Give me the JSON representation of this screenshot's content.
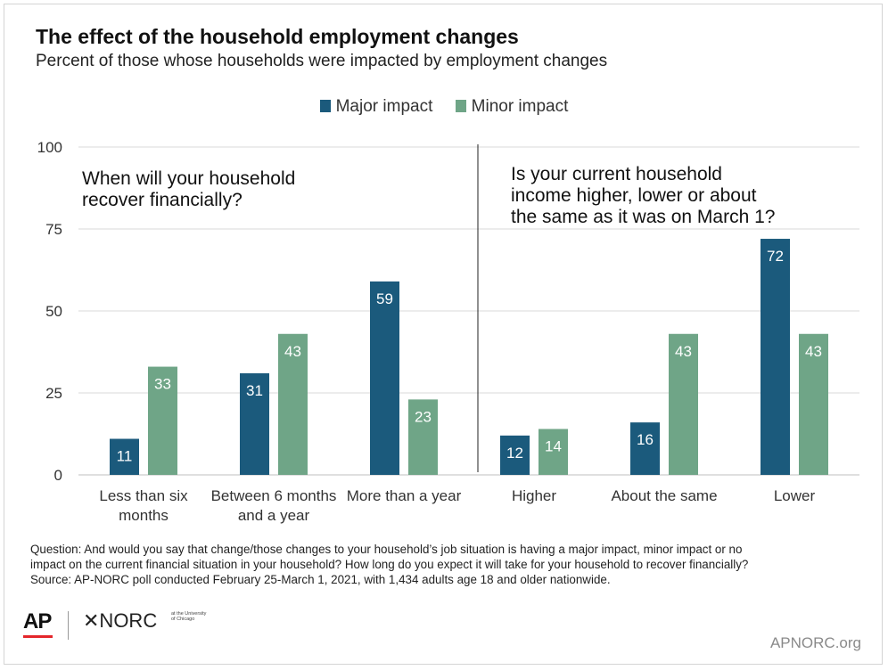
{
  "header": {
    "title": "The effect of the household employment changes",
    "subtitle": "Percent of those whose households were impacted by employment changes"
  },
  "colors": {
    "major": "#1b5a7c",
    "minor": "#6fa587",
    "grid": "#d9d9d9",
    "text": "#333333"
  },
  "legend": {
    "major_label": "Major impact",
    "minor_label": "Minor impact"
  },
  "panels": {
    "left_question": [
      "When will your household",
      "recover financially?"
    ],
    "right_question": [
      "Is your current household",
      "income higher, lower or about",
      "the same as it was on March 1?"
    ]
  },
  "chart_data": {
    "type": "bar",
    "categories": [
      [
        "Less than six",
        "months"
      ],
      [
        "Between 6 months",
        "and a year"
      ],
      [
        "More than a year"
      ],
      [
        "Higher"
      ],
      [
        "About the same"
      ],
      [
        "Lower"
      ]
    ],
    "series": [
      {
        "name": "Major impact",
        "values": [
          11,
          31,
          59,
          12,
          16,
          72
        ]
      },
      {
        "name": "Minor impact",
        "values": [
          33,
          43,
          23,
          14,
          43,
          43
        ]
      }
    ],
    "ylim": [
      0,
      100
    ],
    "yticks": [
      "0",
      "25",
      "50",
      "75",
      "100"
    ],
    "grid": true,
    "legend_position": "top-center"
  },
  "notes": {
    "line1": "Question: And would you say that change/those changes to your household’s job situation is having a major impact, minor impact or no",
    "line2": "impact on the current financial situation in your household? How long do you expect it will take for your household to recover financially?",
    "line3": "Source: AP-NORC poll conducted February 25-March 1, 2021, with 1,434 adults age 18 and older nationwide."
  },
  "footer": {
    "ap_logo": "AP",
    "norc_logo": "✕NORC",
    "norc_sub": "at the University of Chicago",
    "website": "APNORC.org"
  }
}
